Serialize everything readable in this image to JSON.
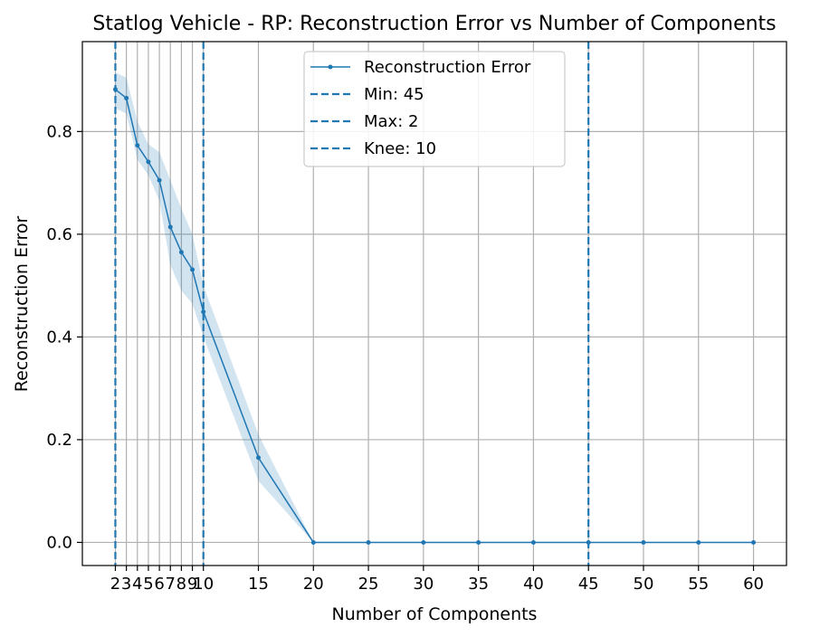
{
  "chart_data": {
    "type": "line",
    "title": "Statlog Vehicle - RP: Reconstruction Error vs Number of Components",
    "xlabel": "Number of Components",
    "ylabel": "Reconstruction Error",
    "xlim": [
      -1,
      63
    ],
    "ylim": [
      -0.045,
      0.975
    ],
    "grid": true,
    "legend_position": "top-center",
    "x_ticks": [
      2,
      3,
      4,
      5,
      6,
      7,
      8,
      9,
      10,
      15,
      20,
      25,
      30,
      35,
      40,
      45,
      50,
      55,
      60
    ],
    "x_tick_labels": [
      "2",
      "3",
      "4",
      "5",
      "6",
      "7",
      "8",
      "9",
      "10",
      "15",
      "20",
      "25",
      "30",
      "35",
      "40",
      "45",
      "50",
      "55",
      "60"
    ],
    "y_ticks": [
      0.0,
      0.2,
      0.4,
      0.6,
      0.8
    ],
    "y_tick_labels": [
      "0.0",
      "0.2",
      "0.4",
      "0.6",
      "0.8"
    ],
    "series": [
      {
        "name": "Reconstruction Error",
        "color": "#1f77b4",
        "x": [
          2,
          3,
          4,
          5,
          6,
          7,
          8,
          9,
          10,
          15,
          20,
          25,
          30,
          35,
          40,
          45,
          50,
          55,
          60
        ],
        "y": [
          0.882,
          0.865,
          0.773,
          0.741,
          0.705,
          0.614,
          0.565,
          0.531,
          0.449,
          0.165,
          0.0,
          0.0,
          0.0,
          0.0,
          0.0,
          0.0,
          0.0,
          0.0,
          0.0
        ],
        "band_lower": [
          0.845,
          0.835,
          0.745,
          0.715,
          0.665,
          0.54,
          0.49,
          0.465,
          0.4,
          0.12,
          0.0,
          0.0,
          0.0,
          0.0,
          0.0,
          0.0,
          0.0,
          0.0,
          0.0
        ],
        "band_upper": [
          0.915,
          0.905,
          0.82,
          0.775,
          0.76,
          0.705,
          0.65,
          0.6,
          0.5,
          0.21,
          0.0,
          0.0,
          0.0,
          0.0,
          0.0,
          0.0,
          0.0,
          0.0,
          0.0
        ],
        "band_color": "#1f77b4"
      }
    ],
    "vlines": [
      {
        "label": "Min: 45",
        "x": 45,
        "color": "#1f77b4",
        "style": "dashed"
      },
      {
        "label": "Max: 2",
        "x": 2,
        "color": "#1f77b4",
        "style": "dashed"
      },
      {
        "label": "Knee: 10",
        "x": 10,
        "color": "#1f77b4",
        "style": "dashed"
      }
    ]
  }
}
